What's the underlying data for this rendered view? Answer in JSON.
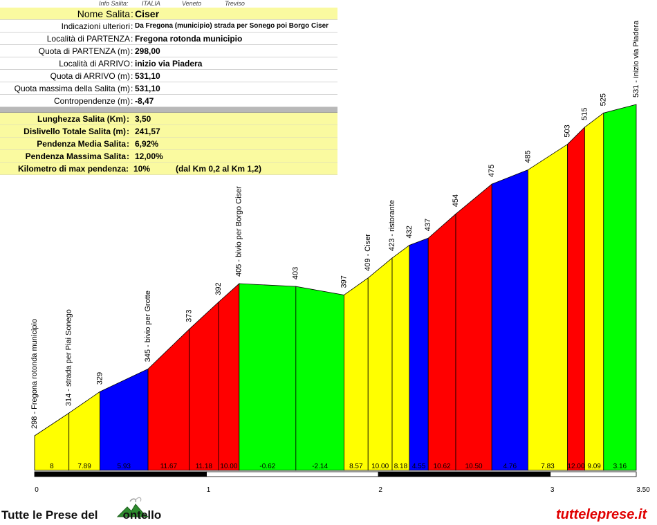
{
  "info": {
    "header": {
      "label": "Info Salita:",
      "country": "ITALIA",
      "region": "Veneto",
      "province": "Treviso"
    },
    "rows": [
      {
        "label": "Nome Salita",
        "value": "Ciser"
      },
      {
        "label": "Indicazioni ulteriori",
        "value": "Da Fregona (municipio) strada per Sonego poi Borgo Ciser"
      },
      {
        "label": "Località di PARTENZA",
        "value": "Fregona rotonda municipio"
      },
      {
        "label": "Quota di PARTENZA (m)",
        "value": "298,00"
      },
      {
        "label": "Località di ARRIVO",
        "value": "inizio via Piadera"
      },
      {
        "label": "Quota di ARRIVO (m)",
        "value": "531,10"
      },
      {
        "label": "Quota massima della Salita (m)",
        "value": "531,10"
      },
      {
        "label": "Contropendenze (m)",
        "value": "-8,47"
      }
    ],
    "summary": [
      {
        "label": "Lunghezza Salita (Km)",
        "value": "3,50"
      },
      {
        "label": "Dislivello Totale Salita (m)",
        "value": "241,57"
      },
      {
        "label": "Pendenza Media Salita",
        "value": "6,92%"
      },
      {
        "label": "Pendenza Massima Salita",
        "value": "12,00%"
      },
      {
        "label": "Kilometro di max pendenza:",
        "value": "10%",
        "extra": "(dal Km 0,2 al Km 1,2)"
      }
    ]
  },
  "chart_data": {
    "type": "area",
    "title": "",
    "xlabel": "",
    "ylabel": "",
    "xlim": [
      0,
      3.5
    ],
    "x_ticks": [
      "0",
      "1",
      "2",
      "3",
      "3.50"
    ],
    "colors": {
      "yellow": "#ffff00",
      "blue": "#0000ff",
      "red": "#ff0000",
      "green": "#00ff00"
    },
    "points": [
      {
        "x": 0.0,
        "elev": 298,
        "label": "298 - Fregona rotonda municipio"
      },
      {
        "x": 0.2,
        "elev": 314,
        "label": "314 - strada per Piai Sonego"
      },
      {
        "x": 0.38,
        "elev": 329,
        "label": "329"
      },
      {
        "x": 0.66,
        "elev": 345,
        "label": "345 - bivio per Grotte"
      },
      {
        "x": 0.9,
        "elev": 373,
        "label": "373"
      },
      {
        "x": 1.07,
        "elev": 392,
        "label": "392"
      },
      {
        "x": 1.19,
        "elev": 405,
        "label": "405 - bivio per Borgo Ciser"
      },
      {
        "x": 1.52,
        "elev": 403,
        "label": "403"
      },
      {
        "x": 1.8,
        "elev": 397,
        "label": "397"
      },
      {
        "x": 1.94,
        "elev": 409,
        "label": "409 - Ciser"
      },
      {
        "x": 2.08,
        "elev": 423,
        "label": "423 - ristorante"
      },
      {
        "x": 2.18,
        "elev": 432,
        "label": "432"
      },
      {
        "x": 2.29,
        "elev": 437,
        "label": "437"
      },
      {
        "x": 2.45,
        "elev": 454,
        "label": "454"
      },
      {
        "x": 2.66,
        "elev": 475,
        "label": "475"
      },
      {
        "x": 2.87,
        "elev": 485,
        "label": "485"
      },
      {
        "x": 3.1,
        "elev": 503,
        "label": "503"
      },
      {
        "x": 3.2,
        "elev": 515,
        "label": "515"
      },
      {
        "x": 3.31,
        "elev": 525,
        "label": "525"
      },
      {
        "x": 3.5,
        "elev": 531,
        "label": "531 - inizio via Piadera"
      }
    ],
    "segments": [
      {
        "gradient": "8",
        "color": "yellow"
      },
      {
        "gradient": "7.89",
        "color": "yellow"
      },
      {
        "gradient": "5.93",
        "color": "blue"
      },
      {
        "gradient": "11.67",
        "color": "red"
      },
      {
        "gradient": "11.18",
        "color": "red"
      },
      {
        "gradient": "10.00",
        "color": "red"
      },
      {
        "gradient": "-0.62",
        "color": "green"
      },
      {
        "gradient": "-2.14",
        "color": "green"
      },
      {
        "gradient": "8.57",
        "color": "yellow"
      },
      {
        "gradient": "10.00",
        "color": "yellow"
      },
      {
        "gradient": "8.18",
        "color": "yellow"
      },
      {
        "gradient": "4.55",
        "color": "blue"
      },
      {
        "gradient": "10.62",
        "color": "red"
      },
      {
        "gradient": "10.50",
        "color": "red"
      },
      {
        "gradient": "4.76",
        "color": "blue"
      },
      {
        "gradient": "7.83",
        "color": "yellow"
      },
      {
        "gradient": "12.00",
        "color": "red"
      },
      {
        "gradient": "9.09",
        "color": "yellow"
      },
      {
        "gradient": "3.16",
        "color": "green"
      }
    ]
  },
  "footer": {
    "left": "Tutte le Prese del",
    "left_suffix": "ontello",
    "right": "tutteleprese.it"
  }
}
